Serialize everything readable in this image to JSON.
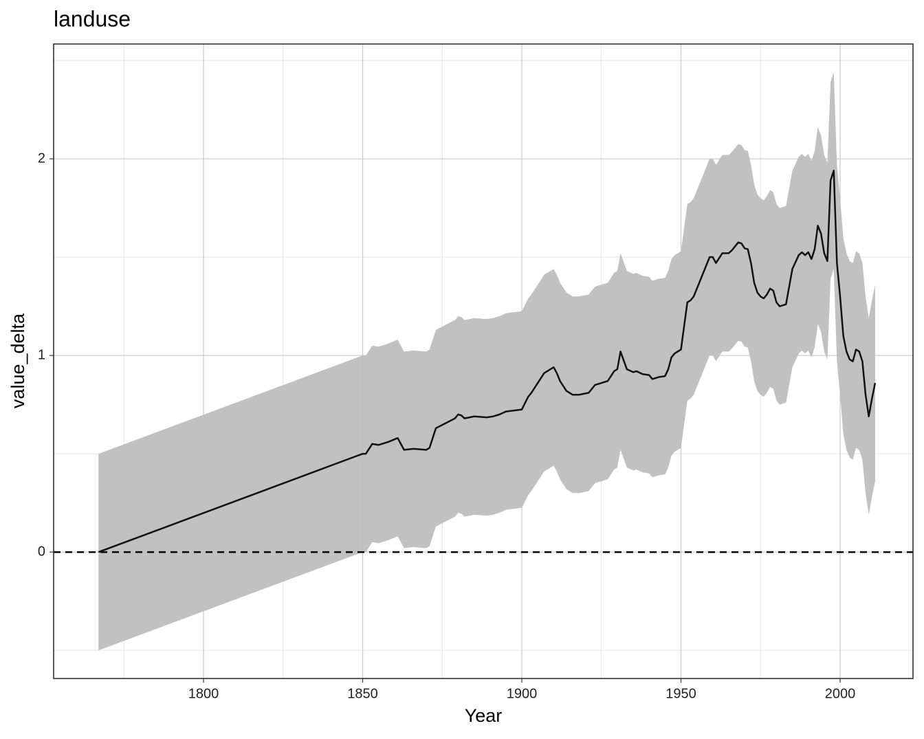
{
  "chart_data": {
    "type": "ribbon_line",
    "title": "landuse",
    "xlabel": "Year",
    "ylabel": "value_delta",
    "x": [
      1767,
      1850,
      1851,
      1853,
      1855,
      1858,
      1861,
      1863,
      1866,
      1870,
      1871,
      1873,
      1879,
      1880,
      1881,
      1882,
      1885,
      1889,
      1891,
      1893,
      1895,
      1900,
      1902,
      1903,
      1907,
      1909,
      1910,
      1911,
      1912,
      1914,
      1916,
      1918,
      1921,
      1923,
      1924,
      1927,
      1929,
      1930,
      1931,
      1933,
      1935,
      1936,
      1938,
      1940,
      1941,
      1943,
      1945,
      1946,
      1947,
      1948,
      1950,
      1952,
      1953,
      1954,
      1957,
      1959,
      1960,
      1961,
      1963,
      1965,
      1966,
      1968,
      1969,
      1970,
      1971,
      1972,
      1973,
      1974,
      1975,
      1976,
      1977,
      1978,
      1979,
      1980,
      1981,
      1983,
      1985,
      1987,
      1988,
      1989,
      1990,
      1991,
      1992,
      1993,
      1994,
      1995,
      1996,
      1997,
      1998,
      1999,
      2000,
      2001,
      2002,
      2003,
      2004,
      2005,
      2006,
      2007,
      2008,
      2009,
      2010,
      2011
    ],
    "values": [
      0,
      0.5,
      0.5,
      0.55,
      0.545,
      0.56,
      0.58,
      0.52,
      0.525,
      0.52,
      0.53,
      0.63,
      0.68,
      0.7,
      0.695,
      0.68,
      0.69,
      0.685,
      0.69,
      0.7,
      0.715,
      0.725,
      0.79,
      0.81,
      0.91,
      0.93,
      0.94,
      0.91,
      0.87,
      0.82,
      0.8,
      0.8,
      0.81,
      0.85,
      0.855,
      0.87,
      0.92,
      0.93,
      1.02,
      0.93,
      0.915,
      0.92,
      0.905,
      0.9,
      0.88,
      0.89,
      0.895,
      0.93,
      0.99,
      1.01,
      1.03,
      1.27,
      1.28,
      1.3,
      1.42,
      1.5,
      1.5,
      1.47,
      1.52,
      1.52,
      1.535,
      1.575,
      1.57,
      1.545,
      1.54,
      1.47,
      1.37,
      1.32,
      1.3,
      1.29,
      1.31,
      1.34,
      1.33,
      1.27,
      1.25,
      1.26,
      1.44,
      1.51,
      1.525,
      1.51,
      1.525,
      1.49,
      1.54,
      1.66,
      1.62,
      1.52,
      1.48,
      1.89,
      1.94,
      1.47,
      1.3,
      1.1,
      1.02,
      0.98,
      0.97,
      1.03,
      1.02,
      0.97,
      0.8,
      0.69,
      0.78,
      0.86
    ],
    "upper": [
      0.5,
      1,
      1,
      1.05,
      1.045,
      1.06,
      1.08,
      1.02,
      1.025,
      1.02,
      1.03,
      1.13,
      1.18,
      1.2,
      1.195,
      1.18,
      1.19,
      1.185,
      1.19,
      1.2,
      1.215,
      1.225,
      1.29,
      1.31,
      1.41,
      1.43,
      1.44,
      1.41,
      1.37,
      1.32,
      1.3,
      1.3,
      1.31,
      1.35,
      1.355,
      1.37,
      1.42,
      1.43,
      1.52,
      1.43,
      1.415,
      1.42,
      1.405,
      1.4,
      1.38,
      1.39,
      1.395,
      1.43,
      1.49,
      1.51,
      1.53,
      1.77,
      1.78,
      1.8,
      1.92,
      2,
      2,
      1.97,
      2.02,
      2.02,
      2.035,
      2.075,
      2.07,
      2.045,
      2.04,
      1.97,
      1.87,
      1.82,
      1.8,
      1.79,
      1.81,
      1.84,
      1.83,
      1.77,
      1.75,
      1.76,
      1.94,
      2.01,
      2.025,
      2.01,
      2.025,
      1.99,
      2.04,
      2.16,
      2.12,
      2.02,
      1.98,
      2.39,
      2.44,
      1.97,
      1.8,
      1.6,
      1.52,
      1.48,
      1.47,
      1.53,
      1.52,
      1.47,
      1.3,
      1.19,
      1.28,
      1.36
    ],
    "lower": [
      -0.5,
      0,
      0,
      0.05,
      0.045,
      0.06,
      0.08,
      0.02,
      0.025,
      0.02,
      0.03,
      0.13,
      0.18,
      0.2,
      0.195,
      0.18,
      0.19,
      0.185,
      0.19,
      0.2,
      0.215,
      0.225,
      0.29,
      0.31,
      0.41,
      0.43,
      0.44,
      0.41,
      0.37,
      0.32,
      0.3,
      0.3,
      0.31,
      0.35,
      0.355,
      0.37,
      0.42,
      0.43,
      0.52,
      0.43,
      0.415,
      0.42,
      0.405,
      0.4,
      0.38,
      0.39,
      0.395,
      0.43,
      0.49,
      0.51,
      0.53,
      0.77,
      0.78,
      0.8,
      0.92,
      1,
      1,
      0.97,
      1.02,
      1.02,
      1.035,
      1.075,
      1.07,
      1.045,
      1.04,
      0.97,
      0.87,
      0.82,
      0.8,
      0.79,
      0.81,
      0.84,
      0.83,
      0.77,
      0.75,
      0.76,
      0.94,
      1.01,
      1.025,
      1.01,
      1.025,
      0.99,
      1.04,
      1.16,
      1.12,
      1.02,
      0.98,
      1.39,
      1.44,
      0.97,
      0.8,
      0.6,
      0.52,
      0.48,
      0.47,
      0.53,
      0.52,
      0.47,
      0.3,
      0.19,
      0.28,
      0.36
    ],
    "color": "#111111",
    "ribbon_color": "#bebebe",
    "hline": 0,
    "xlim": [
      1752.9,
      2022.9
    ],
    "ylim": [
      -0.643,
      2.584
    ],
    "xticks": [
      1800,
      1850,
      1900,
      1950,
      2000
    ],
    "yticks": [
      0,
      1,
      2
    ],
    "x_minor_ticks": [
      1775,
      1825,
      1875,
      1925,
      1975
    ],
    "y_minor_ticks": [
      -0.5,
      0.5,
      1.5,
      2.5
    ],
    "grid": true
  }
}
